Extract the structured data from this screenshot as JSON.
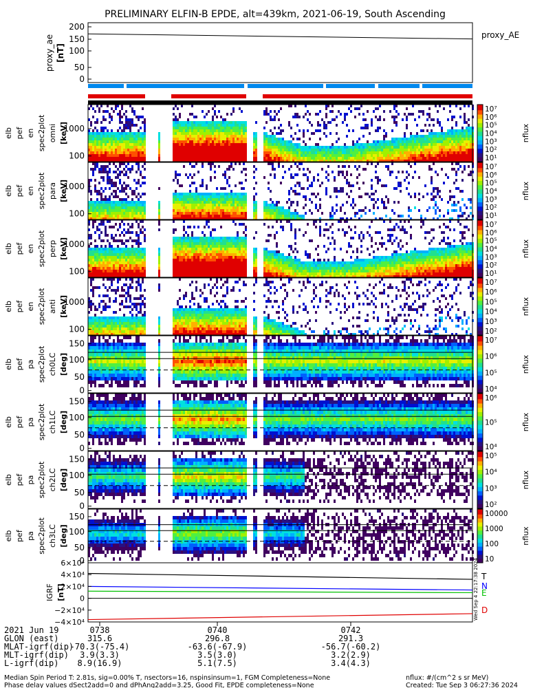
{
  "title": "PRELIMINARY ELFIN-B EPDE, alt=439km, 2021-06-19, South Ascending",
  "panels": [
    {
      "id": "ae",
      "ylabel": [
        "proxy_ae",
        "[nT]"
      ],
      "yticks": [
        "200",
        "150",
        "100",
        "50",
        "0"
      ],
      "legend": "proxy_AE"
    },
    {
      "id": "en_omni",
      "ylabel": [
        "elb",
        "pef",
        "en",
        "spec2plot",
        "omni",
        "[keV]"
      ],
      "yticks": [
        "1000",
        "100"
      ],
      "cbar_label": "nflux",
      "cbar_ticks": [
        "10⁷",
        "10⁶",
        "10⁵",
        "10⁴",
        "10³",
        "10²",
        "10¹"
      ]
    },
    {
      "id": "en_para",
      "ylabel": [
        "elb",
        "pef",
        "en",
        "spec2plot",
        "para",
        "[keV]"
      ],
      "yticks": [
        "1000",
        "100"
      ],
      "cbar_label": "nflux",
      "cbar_ticks": [
        "10⁷",
        "10⁶",
        "10⁵",
        "10⁴",
        "10³",
        "10²",
        "10¹"
      ]
    },
    {
      "id": "en_perp",
      "ylabel": [
        "elb",
        "pef",
        "en",
        "spec2plot",
        "perp",
        "[keV]"
      ],
      "yticks": [
        "1000",
        "100"
      ],
      "cbar_label": "nflux",
      "cbar_ticks": [
        "10⁷",
        "10⁶",
        "10⁵",
        "10⁴",
        "10³",
        "10²",
        "10¹"
      ]
    },
    {
      "id": "en_anti",
      "ylabel": [
        "elb",
        "pef",
        "en",
        "spec2plot",
        "anti",
        "[keV]"
      ],
      "yticks": [
        "1000",
        "100"
      ],
      "cbar_label": "nflux",
      "cbar_ticks": [
        "10⁷",
        "10⁶",
        "10⁵",
        "10⁴",
        "10³",
        "10²"
      ]
    },
    {
      "id": "pa_ch0",
      "ylabel": [
        "elb",
        "pef",
        "pa",
        "spec2plot",
        "ch0LC",
        "[deg]"
      ],
      "yticks": [
        "150",
        "100",
        "50",
        "0"
      ],
      "cbar_label": "nflux",
      "cbar_ticks": [
        "10⁷",
        "10⁶",
        "10⁵",
        "10⁴"
      ]
    },
    {
      "id": "pa_ch1",
      "ylabel": [
        "elb",
        "pef",
        "pa",
        "spec2plot",
        "ch1LC",
        "[deg]"
      ],
      "yticks": [
        "150",
        "100",
        "50",
        "0"
      ],
      "cbar_label": "nflux",
      "cbar_ticks": [
        "10⁶",
        "10⁵",
        "10⁴"
      ]
    },
    {
      "id": "pa_ch2",
      "ylabel": [
        "elb",
        "pef",
        "pa",
        "spec2plot",
        "ch2LC",
        "[deg]"
      ],
      "yticks": [
        "150",
        "100",
        "50",
        "0"
      ],
      "cbar_label": "nflux",
      "cbar_ticks": [
        "10⁵",
        "10⁴",
        "10³",
        "10²"
      ]
    },
    {
      "id": "pa_ch3",
      "ylabel": [
        "elb",
        "pef",
        "pa",
        "spec2plot",
        "ch3LC",
        "[deg]"
      ],
      "yticks": [
        "150",
        "100",
        "50",
        "0"
      ],
      "cbar_label": "nflux",
      "cbar_ticks": [
        "10000",
        "1000",
        "100",
        "10"
      ]
    },
    {
      "id": "igrf",
      "ylabel": [
        "IGRF",
        "[nT]"
      ],
      "yticks": [
        "6×10⁴",
        "4×10⁴",
        "2×10⁴",
        "0",
        "−2×10⁴",
        "−4×10⁴"
      ],
      "legend": [
        "T",
        "N",
        "E",
        "D"
      ]
    }
  ],
  "colors": {
    "T": "#000000",
    "N": "#0000ff",
    "E": "#00c000",
    "D": "#e00000",
    "bar_red": "#e00000",
    "bar_blue": "#0088ee"
  },
  "vertical_stamp": "Wed Sep  4 22:17:38 2024",
  "axis": {
    "rows": [
      [
        "2021 Jun 19",
        "0738",
        "0740",
        "0742"
      ],
      [
        "GLON (east)",
        "315.6",
        "296.8",
        "291.3"
      ],
      [
        "MLAT-igrf(dip)",
        "-70.3(-75.4)",
        "-63.6(-67.9)",
        "-56.7(-60.2)"
      ],
      [
        "MLT-igrf(dip)",
        "3.9(3.3)",
        "3.5(3.0)",
        "3.2(2.9)"
      ],
      [
        "L-igrf(dip)",
        "8.9(16.9)",
        "5.1(7.5)",
        "3.4(4.3)"
      ]
    ]
  },
  "footer": {
    "left1": "Median Spin Period T: 2.81s, sig=0.00% T, nsectors=16, nspinsinsum=1, FGM Completeness=None",
    "left2": "Phase delay values dSect2add=0 and dPhAng2add=3.25, Good Fit, EPDE completeness=None",
    "right1": "nflux: #/(cm^2 s sr MeV)",
    "right2": "Created: Tue Sep  3 06:27:36 2024"
  },
  "chart_data": {
    "type": "heatmap",
    "title": "PRELIMINARY ELFIN-B EPDE, alt=439km, 2021-06-19, South Ascending",
    "x_ticks": [
      "0738",
      "0740",
      "0742"
    ],
    "proxy_ae": {
      "ylim": [
        0,
        200
      ],
      "start": 165,
      "end": 148
    },
    "igrf": {
      "ylim": [
        -40000,
        60000
      ],
      "series": [
        {
          "name": "T",
          "start": 42000,
          "end": 32000
        },
        {
          "name": "N",
          "start": 20000,
          "end": 14000
        },
        {
          "name": "E",
          "start": 12000,
          "end": 9500
        },
        {
          "name": "D",
          "start": -36000,
          "end": -26000
        }
      ]
    }
  }
}
